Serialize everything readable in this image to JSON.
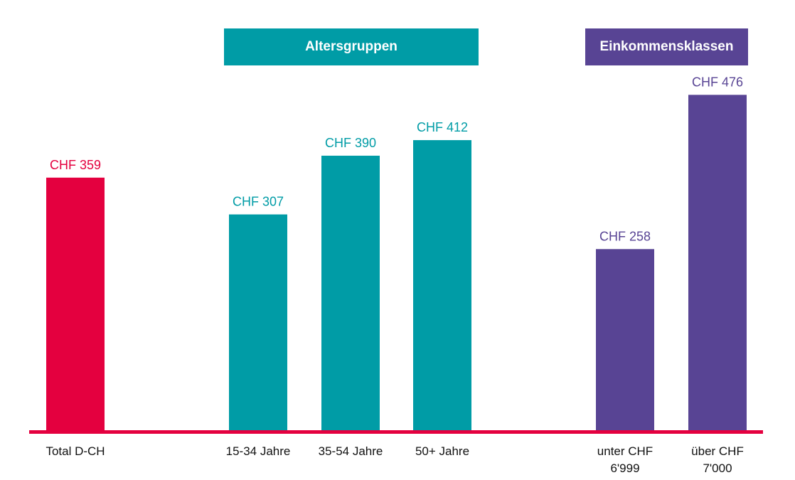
{
  "chart_data": {
    "type": "bar",
    "title": "",
    "xlabel": "",
    "ylabel": "",
    "ylim": [
      0,
      480
    ],
    "grid": false,
    "value_prefix": "CHF ",
    "categories": [
      "Total D-CH",
      "15-34 Jahre",
      "35-54 Jahre",
      "50+ Jahre",
      "unter CHF 6'999",
      "über CHF 7'000"
    ],
    "category_lines": [
      [
        "Total D-CH"
      ],
      [
        "15-34 Jahre"
      ],
      [
        "35-54 Jahre"
      ],
      [
        "50+ Jahre"
      ],
      [
        "unter CHF",
        "6'999"
      ],
      [
        "über CHF",
        "7'000"
      ]
    ],
    "values": [
      359,
      307,
      390,
      412,
      258,
      476
    ],
    "value_labels": [
      "CHF 359",
      "CHF 307",
      "CHF 390",
      "CHF 412",
      "CHF 258",
      "CHF 476"
    ],
    "groups": [
      {
        "name": "Total",
        "label": "",
        "indices": [
          0
        ],
        "color": "#E4003F"
      },
      {
        "name": "Altersgruppen",
        "label": "Altersgruppen",
        "indices": [
          1,
          2,
          3
        ],
        "color": "#009CA6"
      },
      {
        "name": "Einkommensklassen",
        "label": "Einkommensklassen",
        "indices": [
          4,
          5
        ],
        "color": "#584494"
      }
    ],
    "axis_color": "#E4003F"
  }
}
